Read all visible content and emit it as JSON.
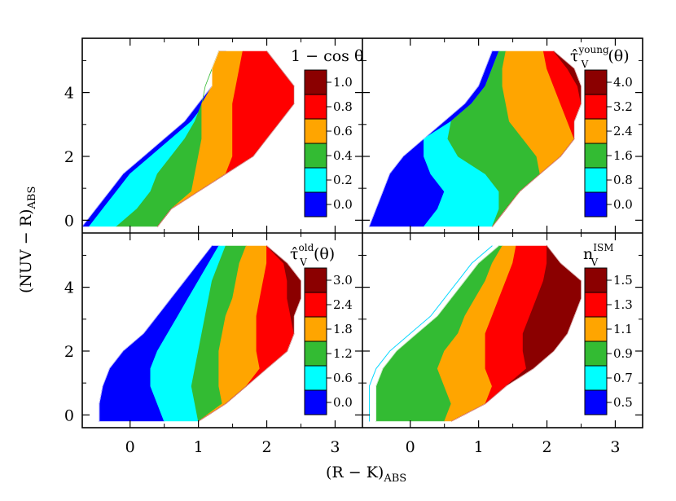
{
  "chart_data": {
    "type": "heatmap",
    "layout": "2x2 shared axes",
    "xlabel": "(R − K)",
    "xlabel_sub": "ABS",
    "ylabel": "(NUV − R)",
    "ylabel_sub": "ABS",
    "xlim": [
      -0.7,
      3.4
    ],
    "ylim": [
      -0.4,
      5.7
    ],
    "xticks": [
      "0",
      "1",
      "2",
      "3"
    ],
    "yticks": [
      "0",
      "2",
      "4"
    ],
    "level_colors": [
      "#0000ff",
      "#00ffff",
      "#33bb33",
      "#ffa500",
      "#ff0000",
      "#8b0000"
    ],
    "panels": [
      {
        "id": "one-minus-cos-theta",
        "title_main": "1 − cos θ",
        "title_sup": "",
        "title_tail": "",
        "colorbar_labels": [
          "1.0",
          "0.8",
          "0.6",
          "0.4",
          "0.2",
          "0.0"
        ],
        "region_bounds": {
          "x_min": [
            -0.7,
            -0.5,
            -0.3,
            -0.1,
            0.2,
            0.5,
            0.8,
            1.0,
            1.2,
            1.2,
            1.3
          ],
          "x_max": [
            0.4,
            0.6,
            1.0,
            1.4,
            1.8,
            2.0,
            2.2,
            2.4,
            2.4,
            2.2,
            2.0
          ]
        },
        "level_boundaries": [
          [
            -0.6,
            -0.4,
            -0.2,
            0.0,
            0.3,
            0.6,
            0.9,
            1.1,
            1.3,
            1.3,
            1.4
          ],
          [
            -0.2,
            0.1,
            0.3,
            0.4,
            0.6,
            0.8,
            0.95,
            1.1,
            1.25,
            1.3,
            1.35
          ],
          [
            0.5,
            0.85,
            0.9,
            0.95,
            1.0,
            1.05,
            1.05,
            1.05,
            1.1,
            1.2,
            1.3
          ],
          [
            1.2,
            1.4,
            1.5,
            1.5,
            1.5,
            1.5,
            1.5,
            1.5,
            1.55,
            1.6,
            1.65
          ],
          [
            1.9,
            2.3,
            2.4,
            2.6,
            2.6,
            2.6,
            2.5,
            2.5,
            2.6,
            2.6,
            2.5
          ]
        ]
      },
      {
        "id": "tau-young",
        "title_main": "τ̂",
        "title_sup": "young",
        "title_tail": "(θ)",
        "colorbar_labels": [
          "4.0",
          "3.2",
          "2.4",
          "1.6",
          "0.8",
          "0.0"
        ],
        "region_bounds": {
          "x_min": [
            -0.6,
            -0.5,
            -0.4,
            -0.3,
            -0.1,
            0.2,
            0.5,
            0.8,
            1.0,
            1.1,
            1.2
          ],
          "x_max": [
            1.2,
            1.4,
            1.6,
            1.9,
            2.2,
            2.4,
            2.4,
            2.5,
            2.5,
            2.4,
            2.1
          ]
        },
        "level_boundaries": [
          [
            0.2,
            0.4,
            0.5,
            0.3,
            0.2,
            0.2,
            0.6,
            0.9,
            1.1,
            1.2,
            1.3
          ],
          [
            1.2,
            1.3,
            1.3,
            1.1,
            0.7,
            0.55,
            0.6,
            0.9,
            1.1,
            1.2,
            1.3
          ],
          [
            1.8,
            1.9,
            1.95,
            1.95,
            1.85,
            1.65,
            1.45,
            1.4,
            1.35,
            1.35,
            1.4
          ],
          [
            2.0,
            2.2,
            2.3,
            2.4,
            2.45,
            2.4,
            2.3,
            2.2,
            2.1,
            2.0,
            1.95
          ],
          [
            2.6,
            2.6,
            2.6,
            2.6,
            2.6,
            2.6,
            2.55,
            2.5,
            2.45,
            2.3,
            2.1
          ]
        ]
      },
      {
        "id": "tau-old",
        "title_main": "τ̂",
        "title_sup": "old",
        "title_tail": "(θ)",
        "colorbar_labels": [
          "3.0",
          "2.4",
          "1.8",
          "1.2",
          "0.6",
          "0.0"
        ],
        "region_bounds": {
          "x_min": [
            -0.45,
            -0.45,
            -0.4,
            -0.3,
            -0.1,
            0.2,
            0.4,
            0.6,
            0.8,
            1.0,
            1.2
          ],
          "x_max": [
            1.0,
            1.4,
            1.7,
            2.0,
            2.3,
            2.4,
            2.4,
            2.5,
            2.5,
            2.3,
            2.0
          ]
        },
        "level_boundaries": [
          [
            0.5,
            0.4,
            0.3,
            0.3,
            0.4,
            0.55,
            0.7,
            0.85,
            1.0,
            1.15,
            1.3
          ],
          [
            1.0,
            0.95,
            0.9,
            0.95,
            1.0,
            1.05,
            1.1,
            1.15,
            1.2,
            1.3,
            1.4
          ],
          [
            1.4,
            1.35,
            1.3,
            1.3,
            1.3,
            1.35,
            1.4,
            1.5,
            1.55,
            1.6,
            1.7
          ],
          [
            1.9,
            1.9,
            1.9,
            1.9,
            1.85,
            1.85,
            1.85,
            1.9,
            1.95,
            2.0,
            2.0
          ],
          [
            2.6,
            2.6,
            2.6,
            2.6,
            2.4,
            2.4,
            2.35,
            2.3,
            2.3,
            2.25,
            2.2
          ]
        ]
      },
      {
        "id": "n-ism",
        "title_main": "n",
        "title_sup": "ISM",
        "title_tail": "",
        "colorbar_labels": [
          "1.5",
          "1.3",
          "1.1",
          "0.9",
          "0.7",
          "0.5"
        ],
        "region_bounds": {
          "x_min": [
            -0.5,
            -0.5,
            -0.5,
            -0.4,
            -0.2,
            0.1,
            0.4,
            0.6,
            0.8,
            1.0,
            1.3
          ],
          "x_max": [
            0.6,
            1.1,
            1.4,
            1.8,
            2.1,
            2.3,
            2.4,
            2.5,
            2.5,
            2.2,
            2.0
          ]
        },
        "level_boundaries": [
          [
            -0.6,
            -0.6,
            -0.6,
            -0.5,
            -0.3,
            0.0,
            0.3,
            0.5,
            0.7,
            0.9,
            1.2
          ],
          [
            -0.6,
            -0.6,
            -0.6,
            -0.5,
            -0.3,
            0.0,
            0.3,
            0.5,
            0.7,
            0.9,
            1.2
          ],
          [
            0.5,
            0.6,
            0.5,
            0.4,
            0.5,
            0.7,
            0.8,
            0.95,
            1.1,
            1.2,
            1.35
          ],
          [
            1.4,
            1.3,
            1.2,
            1.1,
            1.1,
            1.1,
            1.2,
            1.3,
            1.4,
            1.5,
            1.55
          ],
          [
            2.6,
            2.0,
            1.8,
            1.7,
            1.65,
            1.65,
            1.75,
            1.85,
            1.95,
            2.0,
            2.05
          ]
        ]
      }
    ],
    "y_rows": [
      -0.2,
      0.35,
      0.9,
      1.45,
      2.0,
      2.55,
      3.1,
      3.65,
      4.2,
      4.75,
      5.3
    ]
  }
}
